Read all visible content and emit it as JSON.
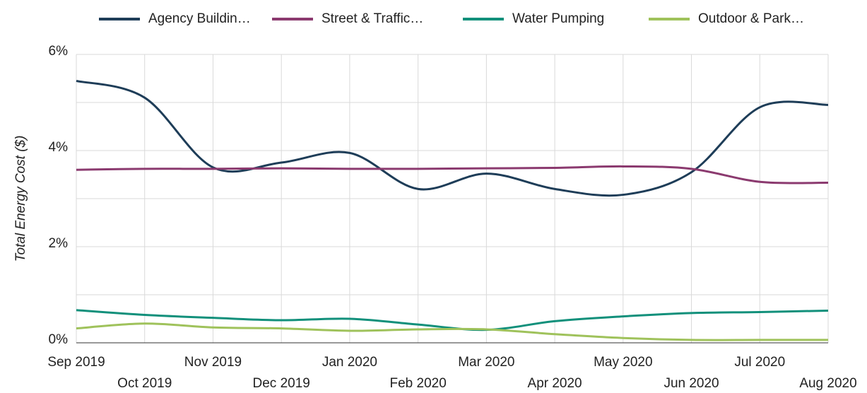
{
  "chart_data": {
    "type": "line",
    "y_label": "Total Energy Cost ($)",
    "categories": [
      "Sep 2019",
      "Oct 2019",
      "Nov 2019",
      "Dec 2019",
      "Jan 2020",
      "Feb 2020",
      "Mar 2020",
      "Apr 2020",
      "May 2020",
      "Jun 2020",
      "Jul 2020",
      "Aug 2020"
    ],
    "series": [
      {
        "name": "Agency Buildin…",
        "color": "#1e3d58",
        "values": [
          5.45,
          5.1,
          3.65,
          3.75,
          3.95,
          3.2,
          3.52,
          3.2,
          3.08,
          3.55,
          4.9,
          4.95
        ]
      },
      {
        "name": "Street & Traffic…",
        "color": "#8b3a6f",
        "values": [
          3.6,
          3.62,
          3.62,
          3.63,
          3.62,
          3.62,
          3.63,
          3.64,
          3.67,
          3.62,
          3.35,
          3.33
        ]
      },
      {
        "name": "Water Pumping",
        "color": "#12907b",
        "values": [
          0.68,
          0.58,
          0.52,
          0.47,
          0.5,
          0.38,
          0.27,
          0.45,
          0.55,
          0.62,
          0.64,
          0.67
        ]
      },
      {
        "name": "Outdoor & Park…",
        "color": "#9fc25b",
        "values": [
          0.3,
          0.4,
          0.32,
          0.3,
          0.25,
          0.28,
          0.28,
          0.18,
          0.1,
          0.06,
          0.06,
          0.06
        ]
      }
    ],
    "ylim": [
      0,
      6
    ],
    "yticks": [
      {
        "value": 0,
        "label": "0%"
      },
      {
        "value": 2,
        "label": "2%"
      },
      {
        "value": 4,
        "label": "4%"
      },
      {
        "value": 6,
        "label": "6%"
      }
    ],
    "minor_yticks": [
      1,
      3,
      5
    ],
    "grid": true,
    "smooth": true,
    "legend": "top"
  }
}
